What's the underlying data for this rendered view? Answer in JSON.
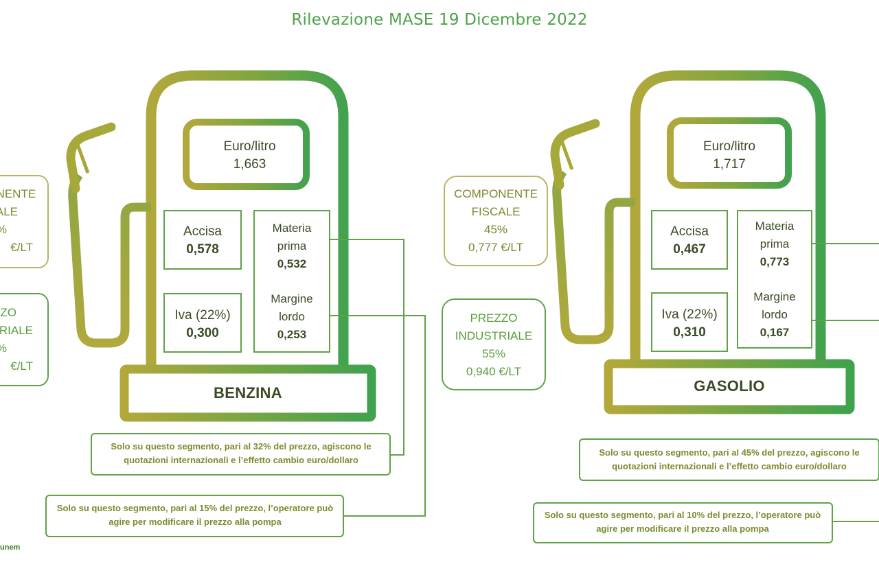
{
  "title": "Rilevazione MASE 19 Dicembre 2022",
  "colors": {
    "green": "#4ea24a",
    "olive": "#a7a83a",
    "text": "#3b4a26"
  },
  "benzina": {
    "name": "BENZINA",
    "price_label": "Euro/litro",
    "price": "1,663",
    "accisa_label": "Accisa",
    "accisa_value": "0,578",
    "iva_label": "Iva (22%)",
    "iva_value": "0,300",
    "materia_label_1": "Materia",
    "materia_label_2": "prima",
    "materia_value": "0,532",
    "margine_label_1": "Margine",
    "margine_label_2": "lordo",
    "margine_value": "0,253",
    "fiscale_line1": "PONENTE",
    "fiscale_line2": "ALE",
    "fiscale_line3": "%",
    "fiscale_line4": "€/LT",
    "industriale_line1": "ZZO",
    "industriale_line2": "RIALE",
    "industriale_line3": "%",
    "industriale_line4": "€/LT",
    "note_materia": "Solo su questo segmento, pari al 32% del prezzo, agiscono le quotazioni internazionali e l’effetto cambio euro/dollaro",
    "note_margine": "Solo su questo segmento, pari al 15% del prezzo, l’operatore può agire per modificare il prezzo alla pompa"
  },
  "gasolio": {
    "name": "GASOLIO",
    "price_label": "Euro/litro",
    "price": "1,717",
    "accisa_label": "Accisa",
    "accisa_value": "0,467",
    "iva_label": "Iva (22%)",
    "iva_value": "0,310",
    "materia_label_1": "Materia",
    "materia_label_2": "prima",
    "materia_value": "0,773",
    "margine_label_1": "Margine",
    "margine_label_2": "lordo",
    "margine_value": "0,167",
    "fiscale_line1": "COMPONENTE",
    "fiscale_line2": "FISCALE",
    "fiscale_line3": "45%",
    "fiscale_line4": "0,777 €/LT",
    "industriale_line1": "PREZZO",
    "industriale_line2": "INDUSTRIALE",
    "industriale_line3": "55%",
    "industriale_line4": "0,940 €/LT",
    "note_materia": "Solo su questo segmento, pari al 45% del prezzo, agiscono le quotazioni internazionali e l’effetto cambio euro/dollaro",
    "note_margine": "Solo su questo segmento, pari al 10% del prezzo, l’operatore può agire per modificare il prezzo alla pompa"
  },
  "footer": "unem"
}
